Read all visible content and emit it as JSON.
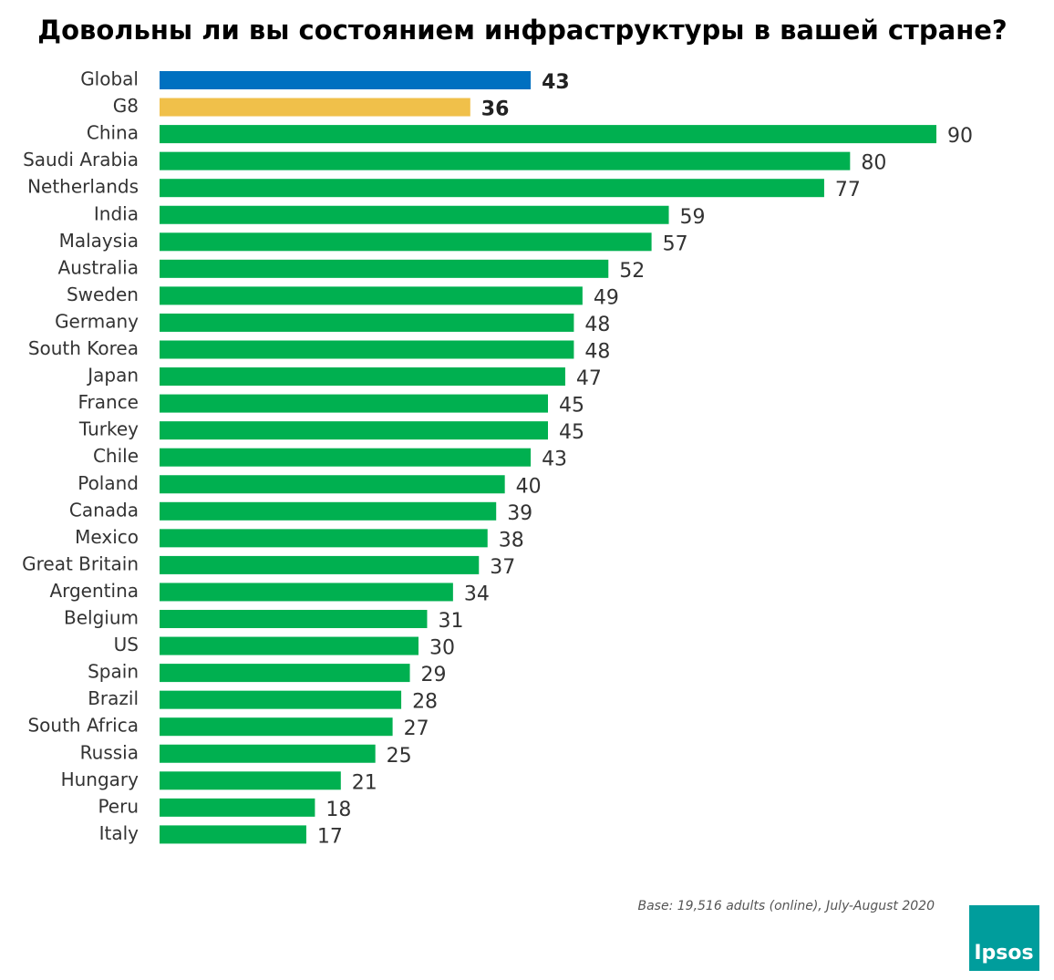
{
  "chart_data": {
    "type": "bar",
    "orientation": "horizontal",
    "title": "Довольны ли вы состоянием инфраструктуры в вашей стране?",
    "categories": [
      "Global",
      "G8",
      "China",
      "Saudi Arabia",
      "Netherlands",
      "India",
      "Malaysia",
      "Australia",
      "Sweden",
      "Germany",
      "South Korea",
      "Japan",
      "France",
      "Turkey",
      "Chile",
      "Poland",
      "Canada",
      "Mexico",
      "Great Britain",
      "Argentina",
      "Belgium",
      "US",
      "Spain",
      "Brazil",
      "South Africa",
      "Russia",
      "Hungary",
      "Peru",
      "Italy"
    ],
    "values": [
      43,
      36,
      90,
      80,
      77,
      59,
      57,
      52,
      49,
      48,
      48,
      47,
      45,
      45,
      43,
      40,
      39,
      38,
      37,
      34,
      31,
      30,
      29,
      28,
      27,
      25,
      21,
      18,
      17
    ],
    "colors": [
      "#0070c0",
      "#f0c04a",
      "#00b050",
      "#00b050",
      "#00b050",
      "#00b050",
      "#00b050",
      "#00b050",
      "#00b050",
      "#00b050",
      "#00b050",
      "#00b050",
      "#00b050",
      "#00b050",
      "#00b050",
      "#00b050",
      "#00b050",
      "#00b050",
      "#00b050",
      "#00b050",
      "#00b050",
      "#00b050",
      "#00b050",
      "#00b050",
      "#00b050",
      "#00b050",
      "#00b050",
      "#00b050",
      "#00b050"
    ],
    "footnote": "Base: 19,516 adults (online), July-August 2020",
    "logo": "Ipsos"
  }
}
